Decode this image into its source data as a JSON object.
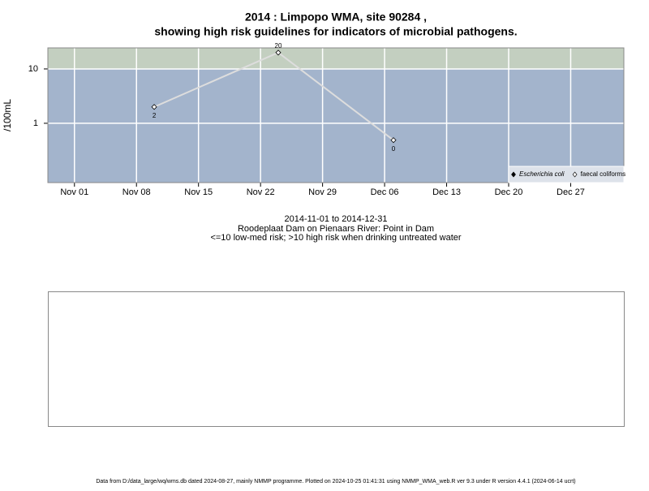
{
  "chart_data": {
    "type": "line",
    "title": "2014 : Limpopo WMA, site 90284 ,",
    "subtitle": "showing high risk guidelines for indicators of microbial pathogens.",
    "ylabel": "/100mL",
    "xlabel": "2014-11-01 to 2014-12-31",
    "notes": [
      "Roodeplaat Dam on Pienaars River: Point in Dam",
      "<=10 low-med risk; >10 high risk when drinking untreated water"
    ],
    "footer": "Data from D:/data_large/wq/wms.db dated 2024-08-27, mainly NMMP programme. Plotted on 2024-10-25 01:41:31 using NMMP_WMA_web.R ver 9.3 under R version 4.4.1 (2024-06-14 ucrt)",
    "x": [
      "2014-11-10",
      "2014-11-24",
      "2014-12-07"
    ],
    "series": [
      {
        "name": "Escherichia coli",
        "color": "#000000",
        "values": [
          null,
          null,
          null
        ]
      },
      {
        "name": "faecal coliforms",
        "color": "#dddddd",
        "values": [
          2,
          20,
          0.49
        ],
        "value_labels": [
          "2",
          "20",
          "0"
        ]
      }
    ],
    "xlim": [
      "2014-10-29",
      "2015-01-02"
    ],
    "xticks": [
      {
        "value": "2014-11-01",
        "label": "Nov 01"
      },
      {
        "value": "2014-11-08",
        "label": "Nov 08"
      },
      {
        "value": "2014-11-15",
        "label": "Nov 15"
      },
      {
        "value": "2014-11-22",
        "label": "Nov 22"
      },
      {
        "value": "2014-11-29",
        "label": "Nov 29"
      },
      {
        "value": "2014-12-06",
        "label": "Dec 06"
      },
      {
        "value": "2014-12-13",
        "label": "Dec 13"
      },
      {
        "value": "2014-12-20",
        "label": "Dec 20"
      },
      {
        "value": "2014-12-27",
        "label": "Dec 27"
      }
    ],
    "ylim": [
      0.081,
      24.4
    ],
    "yticks": [
      1,
      10
    ],
    "log_y": true,
    "grid": true,
    "risk_threshold": 10,
    "low_risk_color": "#a3b4cc",
    "high_risk_color": "#c3cfc0",
    "legend": "bottom-right"
  }
}
